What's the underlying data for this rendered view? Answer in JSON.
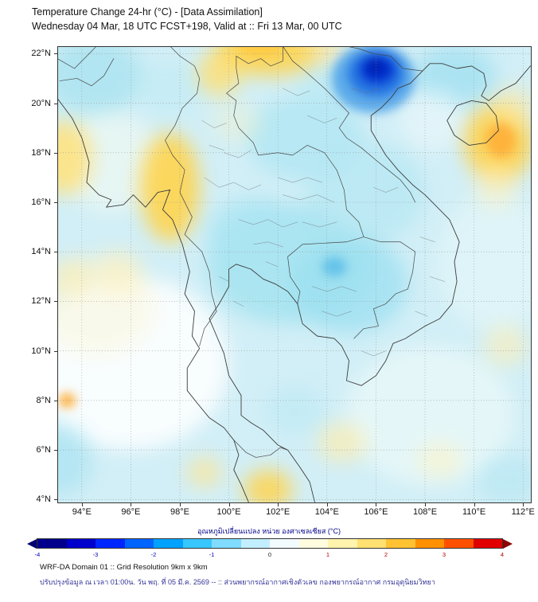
{
  "header": {
    "title": "Temperature Change 24-hr (°C) - [Data Assimilation]",
    "subtitle": "Wednesday 04 Mar, 18 UTC FCST+198, Valid at :: Fri 13 Mar, 00 UTC"
  },
  "map": {
    "x_ticks": [
      "94°E",
      "96°E",
      "98°E",
      "100°E",
      "102°E",
      "104°E",
      "106°E",
      "108°E",
      "110°E",
      "112°E"
    ],
    "y_ticks": [
      "22°N",
      "20°N",
      "18°N",
      "16°N",
      "14°N",
      "12°N",
      "10°N",
      "8°N",
      "6°N",
      "4°N"
    ],
    "field": {
      "base_color": "#d2eff7",
      "blobs": [
        {
          "lon": 96.0,
          "lat": 9.5,
          "rx": 4.0,
          "ry": 3.5,
          "color": "#ffffff",
          "o": 0.85,
          "g": "soft"
        },
        {
          "lon": 94.6,
          "lat": 11.8,
          "rx": 2.4,
          "ry": 2.0,
          "color": "#faf6da",
          "o": 0.55,
          "g": "soft"
        },
        {
          "lon": 108.2,
          "lat": 7.4,
          "rx": 3.4,
          "ry": 2.8,
          "color": "#edfaf8",
          "o": 0.7,
          "g": "soft"
        },
        {
          "lon": 110.9,
          "lat": 13.6,
          "rx": 2.4,
          "ry": 2.8,
          "color": "#e6f6f9",
          "o": 0.6,
          "g": "soft"
        },
        {
          "lon": 95.2,
          "lat": 17.6,
          "rx": 2.0,
          "ry": 2.0,
          "color": "#f3faf0",
          "o": 0.6,
          "g": "soft"
        },
        {
          "lon": 102.5,
          "lat": 13.5,
          "rx": 3.4,
          "ry": 2.4,
          "color": "#a6e3f0",
          "o": 0.9,
          "g": "soft"
        },
        {
          "lon": 104.9,
          "lat": 12.7,
          "rx": 2.4,
          "ry": 2.0,
          "color": "#9bdff0",
          "o": 0.75,
          "g": "soft"
        },
        {
          "lon": 101.1,
          "lat": 14.7,
          "rx": 2.0,
          "ry": 1.5,
          "color": "#abe5f2",
          "o": 0.8,
          "g": "soft"
        },
        {
          "lon": 103.1,
          "lat": 18.6,
          "rx": 2.4,
          "ry": 1.7,
          "color": "#b0e6f2",
          "o": 0.8,
          "g": "soft"
        },
        {
          "lon": 94.5,
          "lat": 21.1,
          "rx": 2.0,
          "ry": 1.5,
          "color": "#a9e2ef",
          "o": 0.8,
          "g": "soft"
        },
        {
          "lon": 97.6,
          "lat": 20.6,
          "rx": 1.4,
          "ry": 1.1,
          "color": "#c2ebf4",
          "o": 0.7,
          "g": "soft"
        },
        {
          "lon": 109.2,
          "lat": 21.1,
          "rx": 1.7,
          "ry": 1.2,
          "color": "#9fdff0",
          "o": 0.75,
          "g": "soft"
        },
        {
          "lon": 104.1,
          "lat": 20.4,
          "rx": 1.2,
          "ry": 1.1,
          "color": "#b7e8f3",
          "o": 0.65,
          "g": "soft"
        },
        {
          "lon": 105.6,
          "lat": 16.4,
          "rx": 2.4,
          "ry": 2.0,
          "color": "#b3e7f2",
          "o": 0.7,
          "g": "soft"
        },
        {
          "lon": 93.3,
          "lat": 17.8,
          "rx": 1.1,
          "ry": 1.5,
          "color": "#ffe27a",
          "o": 0.85,
          "g": "soft"
        },
        {
          "lon": 97.6,
          "lat": 16.6,
          "rx": 1.2,
          "ry": 2.2,
          "color": "#ffd44d",
          "o": 0.9,
          "g": "soft"
        },
        {
          "lon": 101.6,
          "lat": 22.1,
          "rx": 2.2,
          "ry": 1.0,
          "color": "#ffd44d",
          "o": 0.9,
          "g": "soft"
        },
        {
          "lon": 99.6,
          "lat": 21.2,
          "rx": 0.9,
          "ry": 0.9,
          "color": "#ffdf70",
          "o": 0.8,
          "g": "soft"
        },
        {
          "lon": 103.9,
          "lat": 22.2,
          "rx": 0.8,
          "ry": 0.6,
          "color": "#ffe69a",
          "o": 0.7,
          "g": "soft"
        },
        {
          "lon": 111.0,
          "lat": 18.4,
          "rx": 1.4,
          "ry": 1.6,
          "color": "#ffd24a",
          "o": 0.9,
          "g": "soft"
        },
        {
          "lon": 111.6,
          "lat": 19.8,
          "rx": 0.9,
          "ry": 0.9,
          "color": "#ffeaa0",
          "o": 0.55,
          "g": "soft"
        },
        {
          "lon": 110.9,
          "lat": 16.7,
          "rx": 0.9,
          "ry": 0.9,
          "color": "#fff0bb",
          "o": 0.55,
          "g": "soft"
        },
        {
          "lon": 101.6,
          "lat": 4.4,
          "rx": 1.0,
          "ry": 0.8,
          "color": "#ffd44d",
          "o": 0.85,
          "g": "soft"
        },
        {
          "lon": 99.0,
          "lat": 5.1,
          "rx": 0.7,
          "ry": 0.6,
          "color": "#ffe490",
          "o": 0.7,
          "g": "soft"
        },
        {
          "lon": 104.6,
          "lat": 6.3,
          "rx": 1.0,
          "ry": 0.8,
          "color": "#fcedaf",
          "o": 0.7,
          "g": "soft"
        },
        {
          "lon": 108.6,
          "lat": 5.6,
          "rx": 0.9,
          "ry": 0.7,
          "color": "#fdf3c4",
          "o": 0.6,
          "g": "soft"
        },
        {
          "lon": 111.3,
          "lat": 10.2,
          "rx": 0.9,
          "ry": 0.8,
          "color": "#fdeeb4",
          "o": 0.6,
          "g": "soft"
        },
        {
          "lon": 95.5,
          "lat": 13.2,
          "rx": 1.0,
          "ry": 0.9,
          "color": "#fdf0bc",
          "o": 0.6,
          "g": "soft"
        },
        {
          "lon": 93.6,
          "lat": 13.0,
          "rx": 0.8,
          "ry": 0.8,
          "color": "#fbedaf",
          "o": 0.6,
          "g": "soft"
        },
        {
          "lon": 108.3,
          "lat": 19.3,
          "rx": 1.3,
          "ry": 1.2,
          "color": "#e8f7fa",
          "o": 0.7,
          "g": "soft"
        },
        {
          "lon": 102.7,
          "lat": 7.6,
          "rx": 1.2,
          "ry": 1.0,
          "color": "#bfe9f3",
          "o": 0.7,
          "g": "soft"
        },
        {
          "lon": 111.4,
          "lat": 4.8,
          "rx": 1.3,
          "ry": 1.0,
          "color": "#b8e7f2",
          "o": 0.7,
          "g": "soft"
        },
        {
          "lon": 93.2,
          "lat": 5.6,
          "rx": 1.2,
          "ry": 1.4,
          "color": "#aee4f1",
          "o": 0.8,
          "g": "soft"
        },
        {
          "lon": 100.3,
          "lat": 19.2,
          "rx": 1.0,
          "ry": 0.8,
          "color": "#f2f2cf",
          "o": 0.45,
          "g": "soft"
        },
        {
          "lon": 105.9,
          "lat": 21.0,
          "rx": 1.7,
          "ry": 1.4,
          "color": "#4aa0e8",
          "o": 0.85,
          "g": "sharp"
        },
        {
          "lon": 106.0,
          "lat": 21.2,
          "rx": 1.15,
          "ry": 0.95,
          "color": "#1f6fe0",
          "o": 0.9,
          "g": "sharp"
        },
        {
          "lon": 106.05,
          "lat": 21.35,
          "rx": 0.7,
          "ry": 0.55,
          "color": "#0030d0",
          "o": 0.95,
          "g": "sharp"
        },
        {
          "lon": 106.0,
          "lat": 21.45,
          "rx": 0.4,
          "ry": 0.3,
          "color": "#0020b0",
          "o": 0.95,
          "g": "sharp"
        },
        {
          "lon": 104.3,
          "lat": 13.4,
          "rx": 0.5,
          "ry": 0.4,
          "color": "#5bbde8",
          "o": 0.85,
          "g": "sharp"
        },
        {
          "lon": 93.4,
          "lat": 8.0,
          "rx": 0.35,
          "ry": 0.3,
          "color": "#ffa726",
          "o": 0.85,
          "g": "sharp"
        },
        {
          "lon": 101.3,
          "lat": 22.25,
          "rx": 0.9,
          "ry": 0.35,
          "color": "#ffc83e",
          "o": 0.8,
          "g": "sharp"
        },
        {
          "lon": 111.1,
          "lat": 18.5,
          "rx": 0.6,
          "ry": 0.7,
          "color": "#ffaa33",
          "o": 0.8,
          "g": "sharp"
        }
      ]
    }
  },
  "colorbar": {
    "label": "อุณหภูมิเปลี่ยนแปลง หน่วย องศาเซลเซียส (°C)",
    "ticks": [
      -4,
      -3,
      -2,
      -1,
      0,
      1,
      2,
      3,
      4
    ],
    "colors": [
      "#00008c",
      "#0000cd",
      "#0026ff",
      "#0064ff",
      "#00a2ff",
      "#38c6ff",
      "#7fdcff",
      "#c2efff",
      "#f2fcff",
      "#fffce0",
      "#fff3ad",
      "#ffe070",
      "#ffc232",
      "#ff9000",
      "#ff5000",
      "#e00000"
    ],
    "arrow_left": "#000070",
    "arrow_right": "#8b0000",
    "negative_tick_color": "#0000b0",
    "positive_tick_color": "#b00000",
    "zero_tick_color": "#222222"
  },
  "footer": {
    "line1": "WRF-DA Domain 01 :: Grid Resolution 9km x 9km",
    "line2": "ปรับปรุงข้อมูล ณ เวลา 01:00น. วัน พฤ. ที่ 05 มี.ค. 2569 -- :: ส่วนพยากรณ์อากาศเชิงตัวเลข กองพยากรณ์อากาศ กรมอุตุนิยมวิทยา"
  }
}
